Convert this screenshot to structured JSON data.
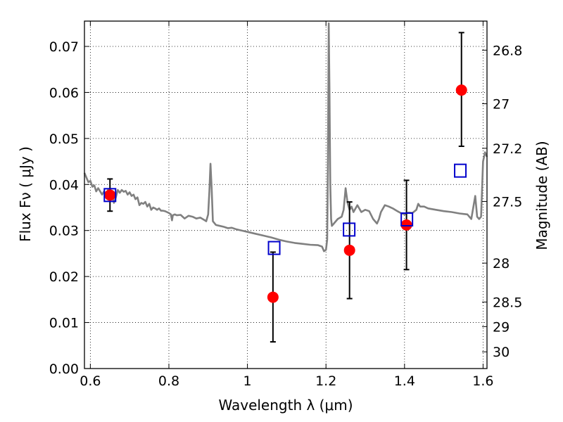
{
  "chart_data": {
    "type": "scatter",
    "title": "",
    "xlabel": "Wavelength  λ (μm)",
    "ylabel": "Flux  Fν  ( μJy )",
    "y2label": "Magnitude (AB)",
    "xlim": [
      0.585,
      1.61
    ],
    "ylim": [
      0.0,
      0.0755
    ],
    "grid": true,
    "legend": "none",
    "x_ticks": [
      "0.6",
      "0.8",
      "1",
      "1.2",
      "1.4",
      "1.6"
    ],
    "x_tick_values": [
      0.6,
      0.8,
      1.0,
      1.2,
      1.4,
      1.6
    ],
    "y_ticks": [
      "0.00",
      "0.01",
      "0.02",
      "0.03",
      "0.04",
      "0.05",
      "0.06",
      "0.07"
    ],
    "y_tick_values": [
      0.0,
      0.01,
      0.02,
      0.03,
      0.04,
      0.05,
      0.06,
      0.07
    ],
    "y2_ticks": [
      "26.8",
      "27",
      "27.2",
      "27.5",
      "28",
      "28.5",
      "29",
      "30"
    ],
    "y2_tick_values": [
      26.8,
      27.0,
      27.2,
      27.5,
      28.0,
      28.5,
      29.0,
      30.0
    ],
    "colors": {
      "spectrum": "#808080",
      "observed": "#ff0000",
      "model": "#0000cc",
      "errorbar": "#000000",
      "grid": "#000000"
    },
    "series": [
      {
        "kind": "line",
        "x": [
          0.585,
          0.59,
          0.595,
          0.6,
          0.605,
          0.61,
          0.615,
          0.62,
          0.625,
          0.63,
          0.635,
          0.64,
          0.645,
          0.65,
          0.655,
          0.66,
          0.665,
          0.67,
          0.675,
          0.68,
          0.685,
          0.69,
          0.695,
          0.7,
          0.705,
          0.71,
          0.715,
          0.72,
          0.725,
          0.73,
          0.735,
          0.74,
          0.745,
          0.75,
          0.755,
          0.76,
          0.765,
          0.77,
          0.775,
          0.78,
          0.785,
          0.79,
          0.795,
          0.8,
          0.805,
          0.808,
          0.81,
          0.815,
          0.82,
          0.83,
          0.84,
          0.85,
          0.86,
          0.87,
          0.88,
          0.89,
          0.895,
          0.9,
          0.903,
          0.906,
          0.909,
          0.912,
          0.92,
          0.93,
          0.94,
          0.95,
          0.96,
          0.97,
          0.98,
          0.99,
          1.0,
          1.02,
          1.04,
          1.06,
          1.08,
          1.1,
          1.12,
          1.14,
          1.16,
          1.18,
          1.19,
          1.195,
          1.2,
          1.203,
          1.205,
          1.207,
          1.209,
          1.211,
          1.213,
          1.215,
          1.22,
          1.23,
          1.24,
          1.245,
          1.25,
          1.255,
          1.26,
          1.265,
          1.27,
          1.28,
          1.29,
          1.3,
          1.31,
          1.32,
          1.33,
          1.335,
          1.34,
          1.35,
          1.36,
          1.37,
          1.38,
          1.39,
          1.4,
          1.41,
          1.42,
          1.43,
          1.435,
          1.44,
          1.45,
          1.46,
          1.48,
          1.5,
          1.52,
          1.54,
          1.55,
          1.56,
          1.57,
          1.575,
          1.58,
          1.585,
          1.59,
          1.595,
          1.6,
          1.605,
          1.61
        ],
        "y": [
          0.0425,
          0.0415,
          0.0405,
          0.0408,
          0.0395,
          0.0398,
          0.0385,
          0.0392,
          0.0385,
          0.0378,
          0.0385,
          0.0375,
          0.0388,
          0.037,
          0.0378,
          0.036,
          0.0372,
          0.0388,
          0.0382,
          0.0388,
          0.0384,
          0.0386,
          0.0378,
          0.0383,
          0.0375,
          0.0378,
          0.0368,
          0.0372,
          0.0355,
          0.036,
          0.0358,
          0.0362,
          0.0352,
          0.0358,
          0.0345,
          0.035,
          0.0348,
          0.0345,
          0.0348,
          0.0343,
          0.0343,
          0.0342,
          0.034,
          0.0338,
          0.0335,
          0.0322,
          0.0333,
          0.0335,
          0.0333,
          0.0334,
          0.0326,
          0.0332,
          0.033,
          0.0326,
          0.0328,
          0.0323,
          0.032,
          0.0335,
          0.0385,
          0.0445,
          0.039,
          0.032,
          0.0312,
          0.031,
          0.0308,
          0.0305,
          0.0306,
          0.0303,
          0.0301,
          0.0299,
          0.0297,
          0.0293,
          0.0289,
          0.0285,
          0.028,
          0.0276,
          0.0273,
          0.0271,
          0.0269,
          0.0268,
          0.0265,
          0.0255,
          0.0258,
          0.028,
          0.045,
          0.075,
          0.06,
          0.04,
          0.0325,
          0.031,
          0.0315,
          0.0325,
          0.033,
          0.0345,
          0.0392,
          0.036,
          0.0345,
          0.0352,
          0.034,
          0.0355,
          0.034,
          0.0345,
          0.0342,
          0.0325,
          0.0315,
          0.0325,
          0.034,
          0.0355,
          0.0352,
          0.0348,
          0.0343,
          0.0338,
          0.0335,
          0.0339,
          0.0338,
          0.0345,
          0.0358,
          0.0352,
          0.0352,
          0.0348,
          0.0345,
          0.0342,
          0.034,
          0.0337,
          0.0336,
          0.0335,
          0.0325,
          0.035,
          0.0375,
          0.033,
          0.0325,
          0.033,
          0.045,
          0.047,
          0.046
        ]
      },
      {
        "kind": "observed",
        "x": [
          0.65,
          1.065,
          1.26,
          1.405,
          1.545
        ],
        "y": [
          0.0377,
          0.0155,
          0.0257,
          0.0312,
          0.0605
        ],
        "yerr_low": [
          0.0035,
          0.0097,
          0.0105,
          0.0097,
          0.0122
        ],
        "yerr_high": [
          0.0035,
          0.0098,
          0.0105,
          0.0097,
          0.0125
        ]
      },
      {
        "kind": "model",
        "x": [
          0.65,
          1.068,
          1.259,
          1.406,
          1.542
        ],
        "y": [
          0.0377,
          0.0262,
          0.0302,
          0.0324,
          0.043
        ]
      }
    ]
  }
}
